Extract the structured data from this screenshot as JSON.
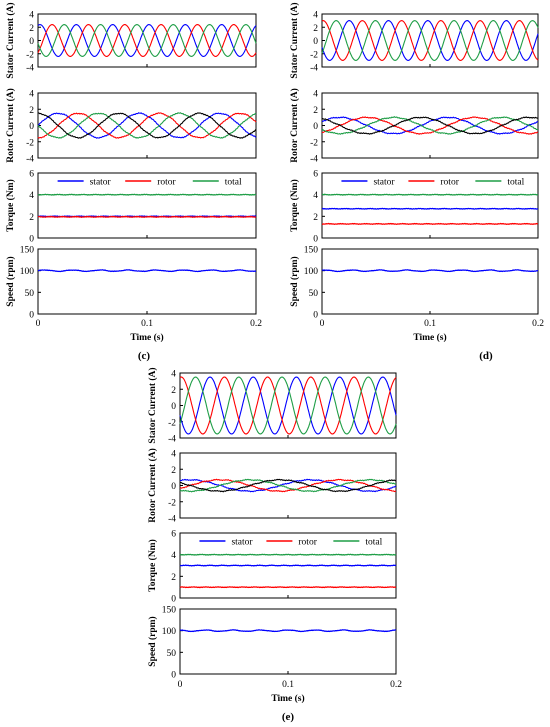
{
  "colors": {
    "phase_a": "#0000ff",
    "phase_b": "#ff0000",
    "phase_c": "#1f9e47",
    "rotor_extra": "#000000"
  },
  "chart_data": [
    {
      "type": "line",
      "caption": "(c)",
      "xlabel": "Time (s)",
      "xlim": [
        0,
        0.2
      ],
      "xticks": [
        "0",
        "0.1",
        "0.2"
      ],
      "panels": [
        {
          "ylabel": "Stator Current (A)",
          "ylim": [
            -4,
            4
          ],
          "yticks": [
            -4,
            -2,
            0,
            2,
            4
          ],
          "waveform": {
            "kind": "three-phase",
            "amplitude": 2.4,
            "periods": 6,
            "phase_start_deg": 70
          },
          "series": [
            {
              "color": "#0000ff"
            },
            {
              "color": "#ff0000"
            },
            {
              "color": "#1f9e47"
            }
          ]
        },
        {
          "ylabel": "Rotor Current (A)",
          "ylim": [
            -4,
            4
          ],
          "yticks": [
            -4,
            -2,
            0,
            2,
            4
          ],
          "waveform": {
            "kind": "four-phase",
            "amplitude": 1.5,
            "periods": 2.7,
            "phase_start_deg": 0
          },
          "series": [
            {
              "color": "#0000ff"
            },
            {
              "color": "#ff0000"
            },
            {
              "color": "#1f9e47"
            },
            {
              "color": "#000000"
            }
          ]
        },
        {
          "ylabel": "Torque (Nm)",
          "ylim": [
            0,
            6
          ],
          "yticks": [
            0,
            2,
            4,
            6
          ],
          "legend": {
            "placement": "top"
          },
          "series": [
            {
              "name": "stator",
              "color": "#0000ff",
              "value": 2.0
            },
            {
              "name": "rotor",
              "color": "#ff0000",
              "value": 1.95
            },
            {
              "name": "total",
              "color": "#1f9e47",
              "value": 4.0
            }
          ]
        },
        {
          "ylabel": "Speed (rpm)",
          "ylim": [
            0,
            150
          ],
          "yticks": [
            0,
            50,
            100,
            150
          ],
          "series": [
            {
              "color": "#0000ff",
              "value": 100
            }
          ]
        }
      ]
    },
    {
      "type": "line",
      "caption": "(d)",
      "xlabel": "Time (s)",
      "xlim": [
        0,
        0.2
      ],
      "xticks": [
        "0",
        "0.1",
        "0.2"
      ],
      "panels": [
        {
          "ylabel": "Stator Current (A)",
          "ylim": [
            -4,
            4
          ],
          "yticks": [
            -4,
            -2,
            0,
            2,
            4
          ],
          "waveform": {
            "kind": "three-phase",
            "amplitude": 3.0,
            "periods": 5.5,
            "phase_start_deg": 200
          },
          "series": [
            {
              "color": "#0000ff"
            },
            {
              "color": "#ff0000"
            },
            {
              "color": "#1f9e47"
            }
          ]
        },
        {
          "ylabel": "Rotor Current (A)",
          "ylim": [
            -4,
            4
          ],
          "yticks": [
            -4,
            -2,
            0,
            2,
            4
          ],
          "waveform": {
            "kind": "four-phase",
            "amplitude": 1.0,
            "periods": 2.0,
            "phase_start_deg": 30
          },
          "series": [
            {
              "color": "#0000ff"
            },
            {
              "color": "#ff0000"
            },
            {
              "color": "#1f9e47"
            },
            {
              "color": "#000000"
            }
          ]
        },
        {
          "ylabel": "Torque (Nm)",
          "ylim": [
            0,
            6
          ],
          "yticks": [
            0,
            2,
            4,
            6
          ],
          "legend": {
            "placement": "top"
          },
          "series": [
            {
              "name": "stator",
              "color": "#0000ff",
              "value": 2.7
            },
            {
              "name": "rotor",
              "color": "#ff0000",
              "value": 1.3
            },
            {
              "name": "total",
              "color": "#1f9e47",
              "value": 4.0
            }
          ]
        },
        {
          "ylabel": "Speed (rpm)",
          "ylim": [
            0,
            150
          ],
          "yticks": [
            0,
            50,
            100,
            150
          ],
          "series": [
            {
              "color": "#0000ff",
              "value": 100
            }
          ]
        }
      ]
    },
    {
      "type": "line",
      "caption": "(e)",
      "xlabel": "Time (s)",
      "xlim": [
        0,
        0.2
      ],
      "xticks": [
        "0",
        "0.1",
        "0.2"
      ],
      "panels": [
        {
          "ylabel": "Stator Current (A)",
          "ylim": [
            -4,
            4
          ],
          "yticks": [
            -4,
            -2,
            0,
            2,
            4
          ],
          "waveform": {
            "kind": "three-phase",
            "amplitude": 3.5,
            "periods": 5.0,
            "phase_start_deg": 200
          },
          "series": [
            {
              "color": "#0000ff"
            },
            {
              "color": "#ff0000"
            },
            {
              "color": "#1f9e47"
            }
          ]
        },
        {
          "ylabel": "Rotor Current (A)",
          "ylim": [
            -4,
            4
          ],
          "yticks": [
            -4,
            -2,
            0,
            2,
            4
          ],
          "waveform": {
            "kind": "four-phase",
            "amplitude": 0.7,
            "periods": 1.8,
            "phase_start_deg": 60
          },
          "series": [
            {
              "color": "#0000ff"
            },
            {
              "color": "#ff0000"
            },
            {
              "color": "#1f9e47"
            },
            {
              "color": "#000000"
            }
          ]
        },
        {
          "ylabel": "Torque (Nm)",
          "ylim": [
            0,
            6
          ],
          "yticks": [
            0,
            2,
            4,
            6
          ],
          "legend": {
            "placement": "top"
          },
          "series": [
            {
              "name": "stator",
              "color": "#0000ff",
              "value": 3.0
            },
            {
              "name": "rotor",
              "color": "#ff0000",
              "value": 1.0
            },
            {
              "name": "total",
              "color": "#1f9e47",
              "value": 4.0
            }
          ]
        },
        {
          "ylabel": "Speed (rpm)",
          "ylim": [
            0,
            150
          ],
          "yticks": [
            0,
            50,
            100,
            150
          ],
          "series": [
            {
              "color": "#0000ff",
              "value": 100
            }
          ]
        }
      ]
    }
  ]
}
